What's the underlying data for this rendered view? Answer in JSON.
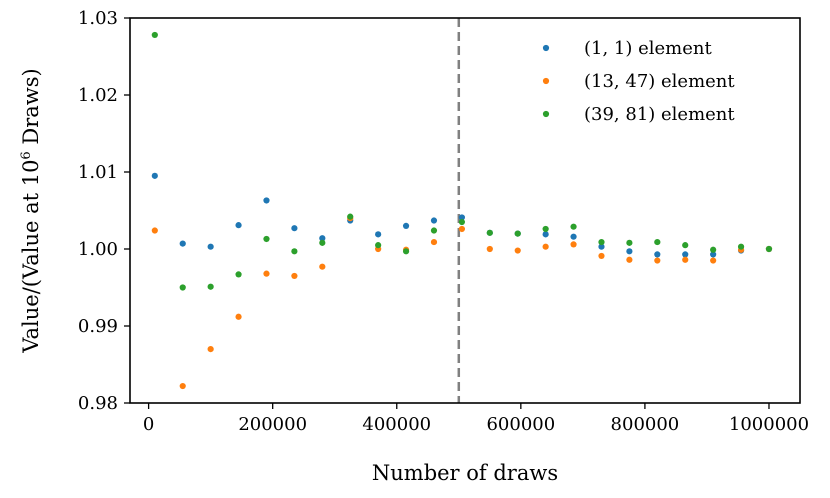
{
  "chart_data": {
    "type": "scatter",
    "title": "",
    "xlabel": "Number of draws",
    "ylabel_parts": [
      "Value/(Value at 10",
      "6",
      " Draws)"
    ],
    "xlim": [
      -30000,
      1050000
    ],
    "ylim": [
      0.98,
      1.03
    ],
    "x_ticks": [
      0,
      200000,
      400000,
      600000,
      800000,
      1000000
    ],
    "x_tick_labels": [
      "0",
      "200000",
      "400000",
      "600000",
      "800000",
      "1000000"
    ],
    "y_ticks": [
      0.98,
      0.99,
      1.0,
      1.01,
      1.02,
      1.03
    ],
    "y_tick_labels": [
      "0.98",
      "0.99",
      "1.00",
      "1.01",
      "1.02",
      "1.03"
    ],
    "grid": false,
    "legend_position": "top-right",
    "vline": {
      "x": 500000,
      "style": "dashed",
      "color": "#808080"
    },
    "x": [
      10000,
      55000,
      100000,
      145000,
      190000,
      235000,
      280000,
      325000,
      370000,
      415000,
      460000,
      505000,
      550000,
      595000,
      640000,
      685000,
      730000,
      775000,
      820000,
      865000,
      910000,
      955000,
      1000000
    ],
    "series": [
      {
        "name": "(1, 1) element",
        "color": "#1f77b4",
        "values": [
          1.0095,
          1.0007,
          1.0003,
          1.0031,
          1.0063,
          1.0027,
          1.0014,
          1.0037,
          1.0019,
          1.003,
          1.0037,
          1.0041,
          1.0021,
          1.002,
          1.0019,
          1.0016,
          1.0003,
          0.9997,
          0.9993,
          0.9993,
          0.9993,
          0.9998,
          1.0
        ]
      },
      {
        "name": "(13, 47) element",
        "color": "#ff7f0e",
        "values": [
          1.0024,
          0.9822,
          0.987,
          0.9912,
          0.9968,
          0.9965,
          0.9977,
          1.004,
          1.0,
          0.9999,
          1.0009,
          1.0026,
          1.0,
          0.9998,
          1.0003,
          1.0006,
          0.9991,
          0.9986,
          0.9985,
          0.9986,
          0.9985,
          0.9999,
          1.0
        ]
      },
      {
        "name": "(39, 81) element",
        "color": "#2ca02c",
        "values": [
          1.0278,
          0.995,
          0.9951,
          0.9967,
          1.0013,
          0.9997,
          1.0008,
          1.0042,
          1.0005,
          0.9997,
          1.0024,
          1.0035,
          1.0021,
          1.002,
          1.0026,
          1.0029,
          1.0009,
          1.0008,
          1.0009,
          1.0005,
          0.9999,
          1.0003,
          1.0
        ]
      }
    ]
  }
}
